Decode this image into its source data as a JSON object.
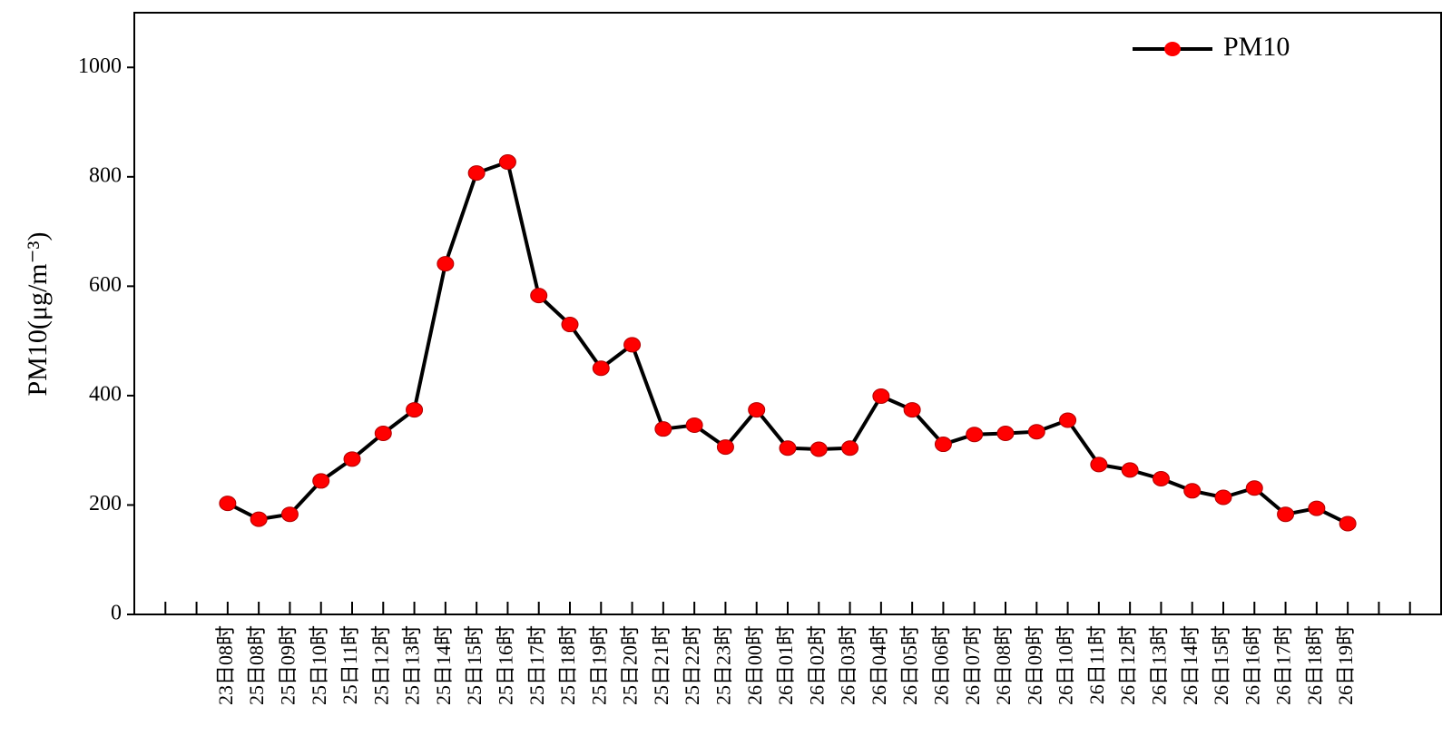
{
  "chart_data": {
    "type": "line",
    "y_label": "PM10(μg/m⁻³)",
    "categories": [
      null,
      null,
      "23日08时",
      "25日08时",
      "25日09时",
      "25日10时",
      "25日11时",
      "25日12时",
      "25日13时",
      "25日14时",
      "25日15时",
      "25日16时",
      "25日17时",
      "25日18时",
      "25日19时",
      "25日20时",
      "25日21时",
      "25日22时",
      "25日23时",
      "26日00时",
      "26日01时",
      "26日02时",
      "26日03时",
      "26日04时",
      "26日05时",
      "26日06时",
      "26日07时",
      "26日08时",
      "26日09时",
      "26日10时",
      "26日11时",
      "26日12时",
      "26日13时",
      "26日14时",
      "26日15时",
      "26日16时",
      "26日17时",
      "26日18时",
      "26日19时",
      null,
      null
    ],
    "series": [
      {
        "name": "PM10",
        "color": "#000000",
        "marker_color": "#ff0000",
        "values": [
          null,
          null,
          203,
          174,
          183,
          244,
          284,
          331,
          374,
          641,
          807,
          827,
          583,
          530,
          450,
          493,
          339,
          346,
          306,
          374,
          304,
          302,
          304,
          399,
          374,
          311,
          329,
          331,
          334,
          355,
          274,
          264,
          248,
          226,
          214,
          231,
          183,
          194,
          166,
          null,
          null
        ]
      }
    ],
    "ylim": [
      0,
      1100
    ],
    "yticks": [
      0,
      200,
      400,
      600,
      800,
      1000
    ],
    "legend": "upper-right",
    "grid": false
  }
}
